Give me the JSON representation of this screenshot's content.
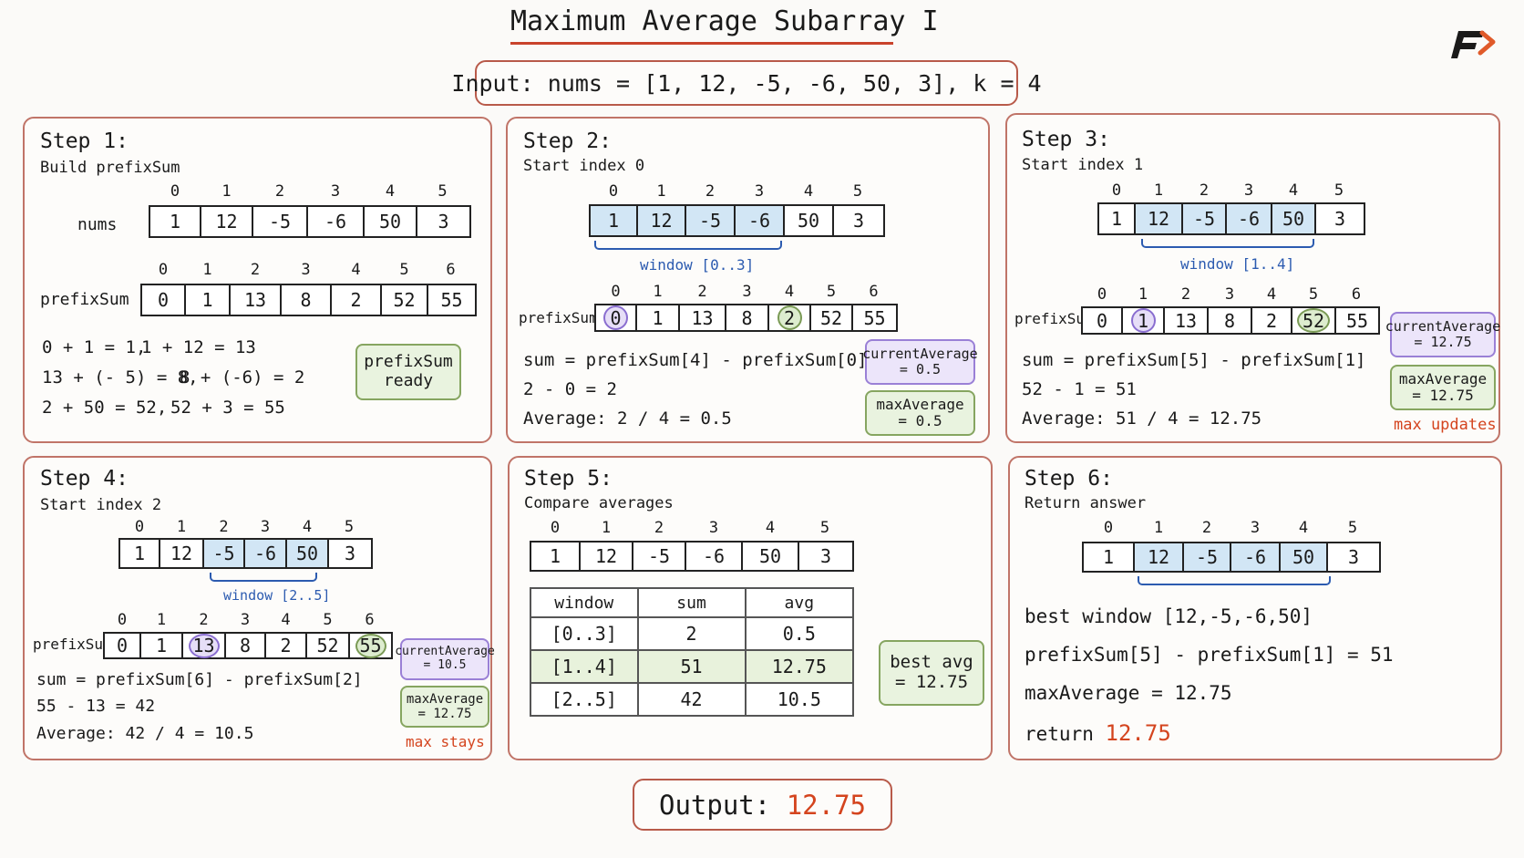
{
  "title": "Maximum Average Subarray I",
  "input": "Input: nums = [1, 12, -5, -6, 50, 3], k = 4",
  "output": {
    "label": "Output:",
    "value": "12.75"
  },
  "step1": {
    "title": "Step 1:",
    "subtitle": "Build prefixSum",
    "nums_label": "nums",
    "nums_index": [
      "0",
      "1",
      "2",
      "3",
      "4",
      "5"
    ],
    "nums": [
      "1",
      "12",
      "-5",
      "-6",
      "50",
      "3"
    ],
    "prefix_label": "prefixSum",
    "prefix_index": [
      "0",
      "1",
      "2",
      "3",
      "4",
      "5",
      "6"
    ],
    "prefix": [
      "0",
      "1",
      "13",
      "8",
      "2",
      "52",
      "55"
    ],
    "calc": [
      "0 + 1 = 1,",
      "1 + 12 = 13",
      "13 + (- 5) = 8,",
      "8 + (-6) = 2",
      "2 + 50 = 52,",
      "52 + 3 = 55"
    ],
    "badge": [
      "prefixSum",
      "ready"
    ]
  },
  "step2": {
    "title": "Step 2:",
    "subtitle": "Start index 0",
    "nums_index": [
      "0",
      "1",
      "2",
      "3",
      "4",
      "5"
    ],
    "nums": [
      "1",
      "12",
      "-5",
      "-6",
      "50",
      "3"
    ],
    "window": "window [0..3]",
    "prefix_label": "prefixSum",
    "prefix_index": [
      "0",
      "1",
      "2",
      "3",
      "4",
      "5",
      "6"
    ],
    "prefix": [
      "0",
      "1",
      "13",
      "8",
      "2",
      "52",
      "55"
    ],
    "sum": "sum = prefixSum[4] - prefixSum[0]",
    "diff": "2 - 0 = 2",
    "avg": "Average: 2 / 4 = 0.5",
    "current": [
      "currentAverage",
      "= 0.5"
    ],
    "max": [
      "maxAverage",
      "= 0.5"
    ]
  },
  "step3": {
    "title": "Step 3:",
    "subtitle": "Start index 1",
    "nums_index": [
      "0",
      "1",
      "2",
      "3",
      "4",
      "5"
    ],
    "nums": [
      "1",
      "12",
      "-5",
      "-6",
      "50",
      "3"
    ],
    "window": "window [1..4]",
    "prefix_label": "prefixSum",
    "prefix_index": [
      "0",
      "1",
      "2",
      "3",
      "4",
      "5",
      "6"
    ],
    "prefix": [
      "0",
      "1",
      "13",
      "8",
      "2",
      "52",
      "55"
    ],
    "sum": "sum = prefixSum[5] - prefixSum[1]",
    "diff": "52 - 1 = 51",
    "avg": "Average: 51 / 4 = 12.75",
    "current": [
      "currentAverage",
      "= 12.75"
    ],
    "max": [
      "maxAverage",
      "= 12.75"
    ],
    "note": "max updates"
  },
  "step4": {
    "title": "Step 4:",
    "subtitle": "Start index 2",
    "nums_index": [
      "0",
      "1",
      "2",
      "3",
      "4",
      "5"
    ],
    "nums": [
      "1",
      "12",
      "-5",
      "-6",
      "50",
      "3"
    ],
    "window": "window [2..5]",
    "prefix_label": "prefixSum",
    "prefix_index": [
      "0",
      "1",
      "2",
      "3",
      "4",
      "5",
      "6"
    ],
    "prefix": [
      "0",
      "1",
      "13",
      "8",
      "2",
      "52",
      "55"
    ],
    "sum": "sum = prefixSum[6] - prefixSum[2]",
    "diff": "55 - 13 = 42",
    "avg": "Average: 42 / 4 = 10.5",
    "current": [
      "currentAverage",
      "= 10.5"
    ],
    "max": [
      "maxAverage",
      "= 12.75"
    ],
    "note": "max stays"
  },
  "step5": {
    "title": "Step 5:",
    "subtitle": "Compare averages",
    "nums_index": [
      "0",
      "1",
      "2",
      "3",
      "4",
      "5"
    ],
    "nums": [
      "1",
      "12",
      "-5",
      "-6",
      "50",
      "3"
    ],
    "table_head": [
      "window",
      "sum",
      "avg"
    ],
    "rows": [
      [
        "[0..3]",
        "2",
        "0.5"
      ],
      [
        "[1..4]",
        "51",
        "12.75"
      ],
      [
        "[2..5]",
        "42",
        "10.5"
      ]
    ],
    "best": [
      "best avg",
      "= 12.75"
    ]
  },
  "step6": {
    "title": "Step 6:",
    "subtitle": "Return answer",
    "nums_index": [
      "0",
      "1",
      "2",
      "3",
      "4",
      "5"
    ],
    "nums": [
      "1",
      "12",
      "-5",
      "-6",
      "50",
      "3"
    ],
    "line1": "best window [12,-5,-6,50]",
    "line2": "prefixSum[5] - prefixSum[1] = 51",
    "line3": "maxAverage = 12.75",
    "ret_label": "return",
    "ret_value": "12.75"
  },
  "colors": {
    "accent_red": "#d4441e",
    "window_blue": "#2c5bb0",
    "highlight_blue": "#d2e6f5",
    "purple": "#9a80d6",
    "green": "#86a560"
  }
}
